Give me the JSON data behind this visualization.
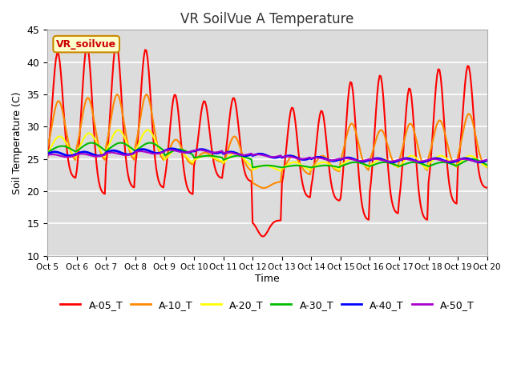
{
  "title": "VR SoilVue A Temperature",
  "xlabel": "Time",
  "ylabel": "Soil Temperature (C)",
  "ylim": [
    10,
    45
  ],
  "xlim_days": 15,
  "background_color": "#dcdcdc",
  "legend_label": "VR_soilvue",
  "x_tick_labels": [
    "Oct 5",
    "Oct 6",
    "Oct 7",
    "Oct 8",
    "Oct 9",
    "Oct 10",
    "Oct 11",
    "Oct 12",
    "Oct 13",
    "Oct 14",
    "Oct 15",
    "Oct 16",
    "Oct 17",
    "Oct 18",
    "Oct 19",
    "Oct 20"
  ],
  "series_colors": {
    "A-05_T": "#ff0000",
    "A-10_T": "#ff8800",
    "A-20_T": "#ffff00",
    "A-30_T": "#00bb00",
    "A-40_T": "#0000ff",
    "A-50_T": "#aa00cc"
  },
  "series_lw": {
    "A-05_T": 1.5,
    "A-10_T": 1.5,
    "A-20_T": 1.5,
    "A-30_T": 1.5,
    "A-40_T": 2.0,
    "A-50_T": 1.5
  },
  "A05_peaks": [
    41.5,
    42.5,
    43.0,
    42.0,
    35.0,
    34.0,
    34.5,
    13.0,
    33.0,
    32.5,
    37.0,
    38.0,
    36.0,
    39.0,
    39.5
  ],
  "A05_mins": [
    22.0,
    19.5,
    20.5,
    20.5,
    19.5,
    22.0,
    21.5,
    15.5,
    19.0,
    18.5,
    15.5,
    16.5,
    15.5,
    18.0,
    20.5
  ],
  "A10_peaks": [
    34.0,
    34.5,
    35.0,
    35.0,
    28.0,
    26.0,
    28.5,
    20.5,
    25.5,
    25.5,
    30.5,
    29.5,
    30.5,
    31.0,
    32.0
  ],
  "A10_mins": [
    24.5,
    24.5,
    24.5,
    24.5,
    24.0,
    24.5,
    23.0,
    21.5,
    22.5,
    23.0,
    23.0,
    23.5,
    23.0,
    23.5,
    23.5
  ],
  "A20_peaks": [
    28.5,
    29.0,
    29.5,
    29.5,
    26.5,
    25.5,
    26.0,
    24.0,
    24.5,
    24.5,
    25.0,
    25.0,
    25.5,
    25.5,
    25.5
  ],
  "A20_mins": [
    24.5,
    24.5,
    24.5,
    24.5,
    24.0,
    24.5,
    23.5,
    23.0,
    23.0,
    23.0,
    23.5,
    23.5,
    23.0,
    23.5,
    23.5
  ],
  "A30_peaks": [
    27.0,
    27.5,
    27.5,
    27.5,
    26.5,
    25.5,
    25.5,
    24.0,
    24.0,
    24.0,
    24.5,
    24.5,
    24.5,
    24.5,
    25.0
  ],
  "A30_mins": [
    25.5,
    25.5,
    25.5,
    25.5,
    25.0,
    25.0,
    24.5,
    23.5,
    23.5,
    23.5,
    23.5,
    23.5,
    23.5,
    23.5,
    23.5
  ],
  "A40_base": [
    25.8,
    25.8,
    26.0,
    26.2,
    26.3,
    26.2,
    25.8,
    25.5,
    25.2,
    25.0,
    24.9,
    24.8,
    24.8,
    24.8,
    24.8
  ],
  "A50_base": [
    25.5,
    25.6,
    25.8,
    26.0,
    26.2,
    26.2,
    25.8,
    25.5,
    25.2,
    25.0,
    24.9,
    24.8,
    24.8,
    24.8,
    24.8
  ]
}
